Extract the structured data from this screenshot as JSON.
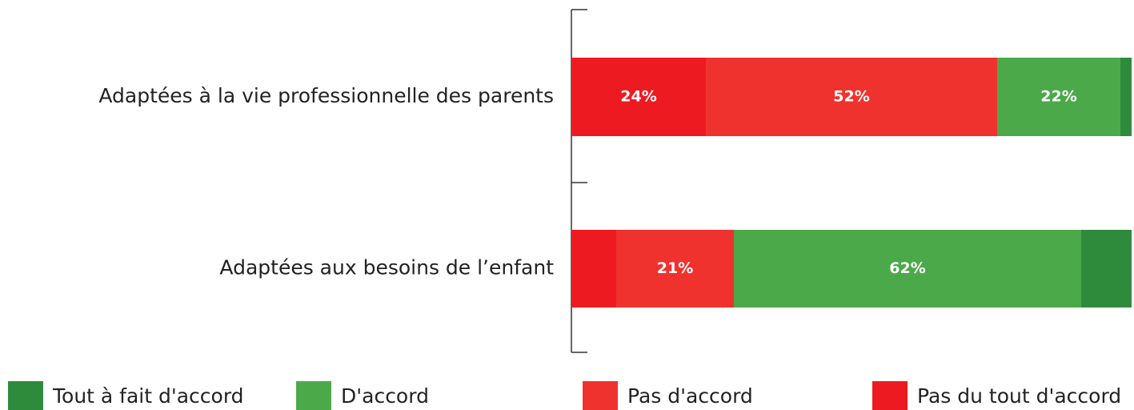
{
  "chart_data": {
    "type": "stacked-bar-horizontal",
    "categories": [
      "Adaptées à la vie professionnelle des parents",
      "Adaptées aux besoins de l’enfant"
    ],
    "series": [
      {
        "name": "Tout à fait d'accord",
        "color": "#2e8b3c",
        "values": [
          2,
          9
        ]
      },
      {
        "name": "D'accord",
        "color": "#4ca94a",
        "values": [
          22,
          62
        ],
        "value_labels": [
          "22%",
          "62%"
        ]
      },
      {
        "name": "Pas d'accord",
        "color": "#f0322e",
        "values": [
          52,
          21
        ],
        "value_labels": [
          "52%",
          "21%"
        ]
      },
      {
        "name": "Pas du tout d'accord",
        "color": "#ee1a22",
        "values": [
          24,
          8
        ],
        "value_labels": [
          "24%",
          null
        ]
      }
    ],
    "xlim": [
      0,
      100
    ]
  }
}
